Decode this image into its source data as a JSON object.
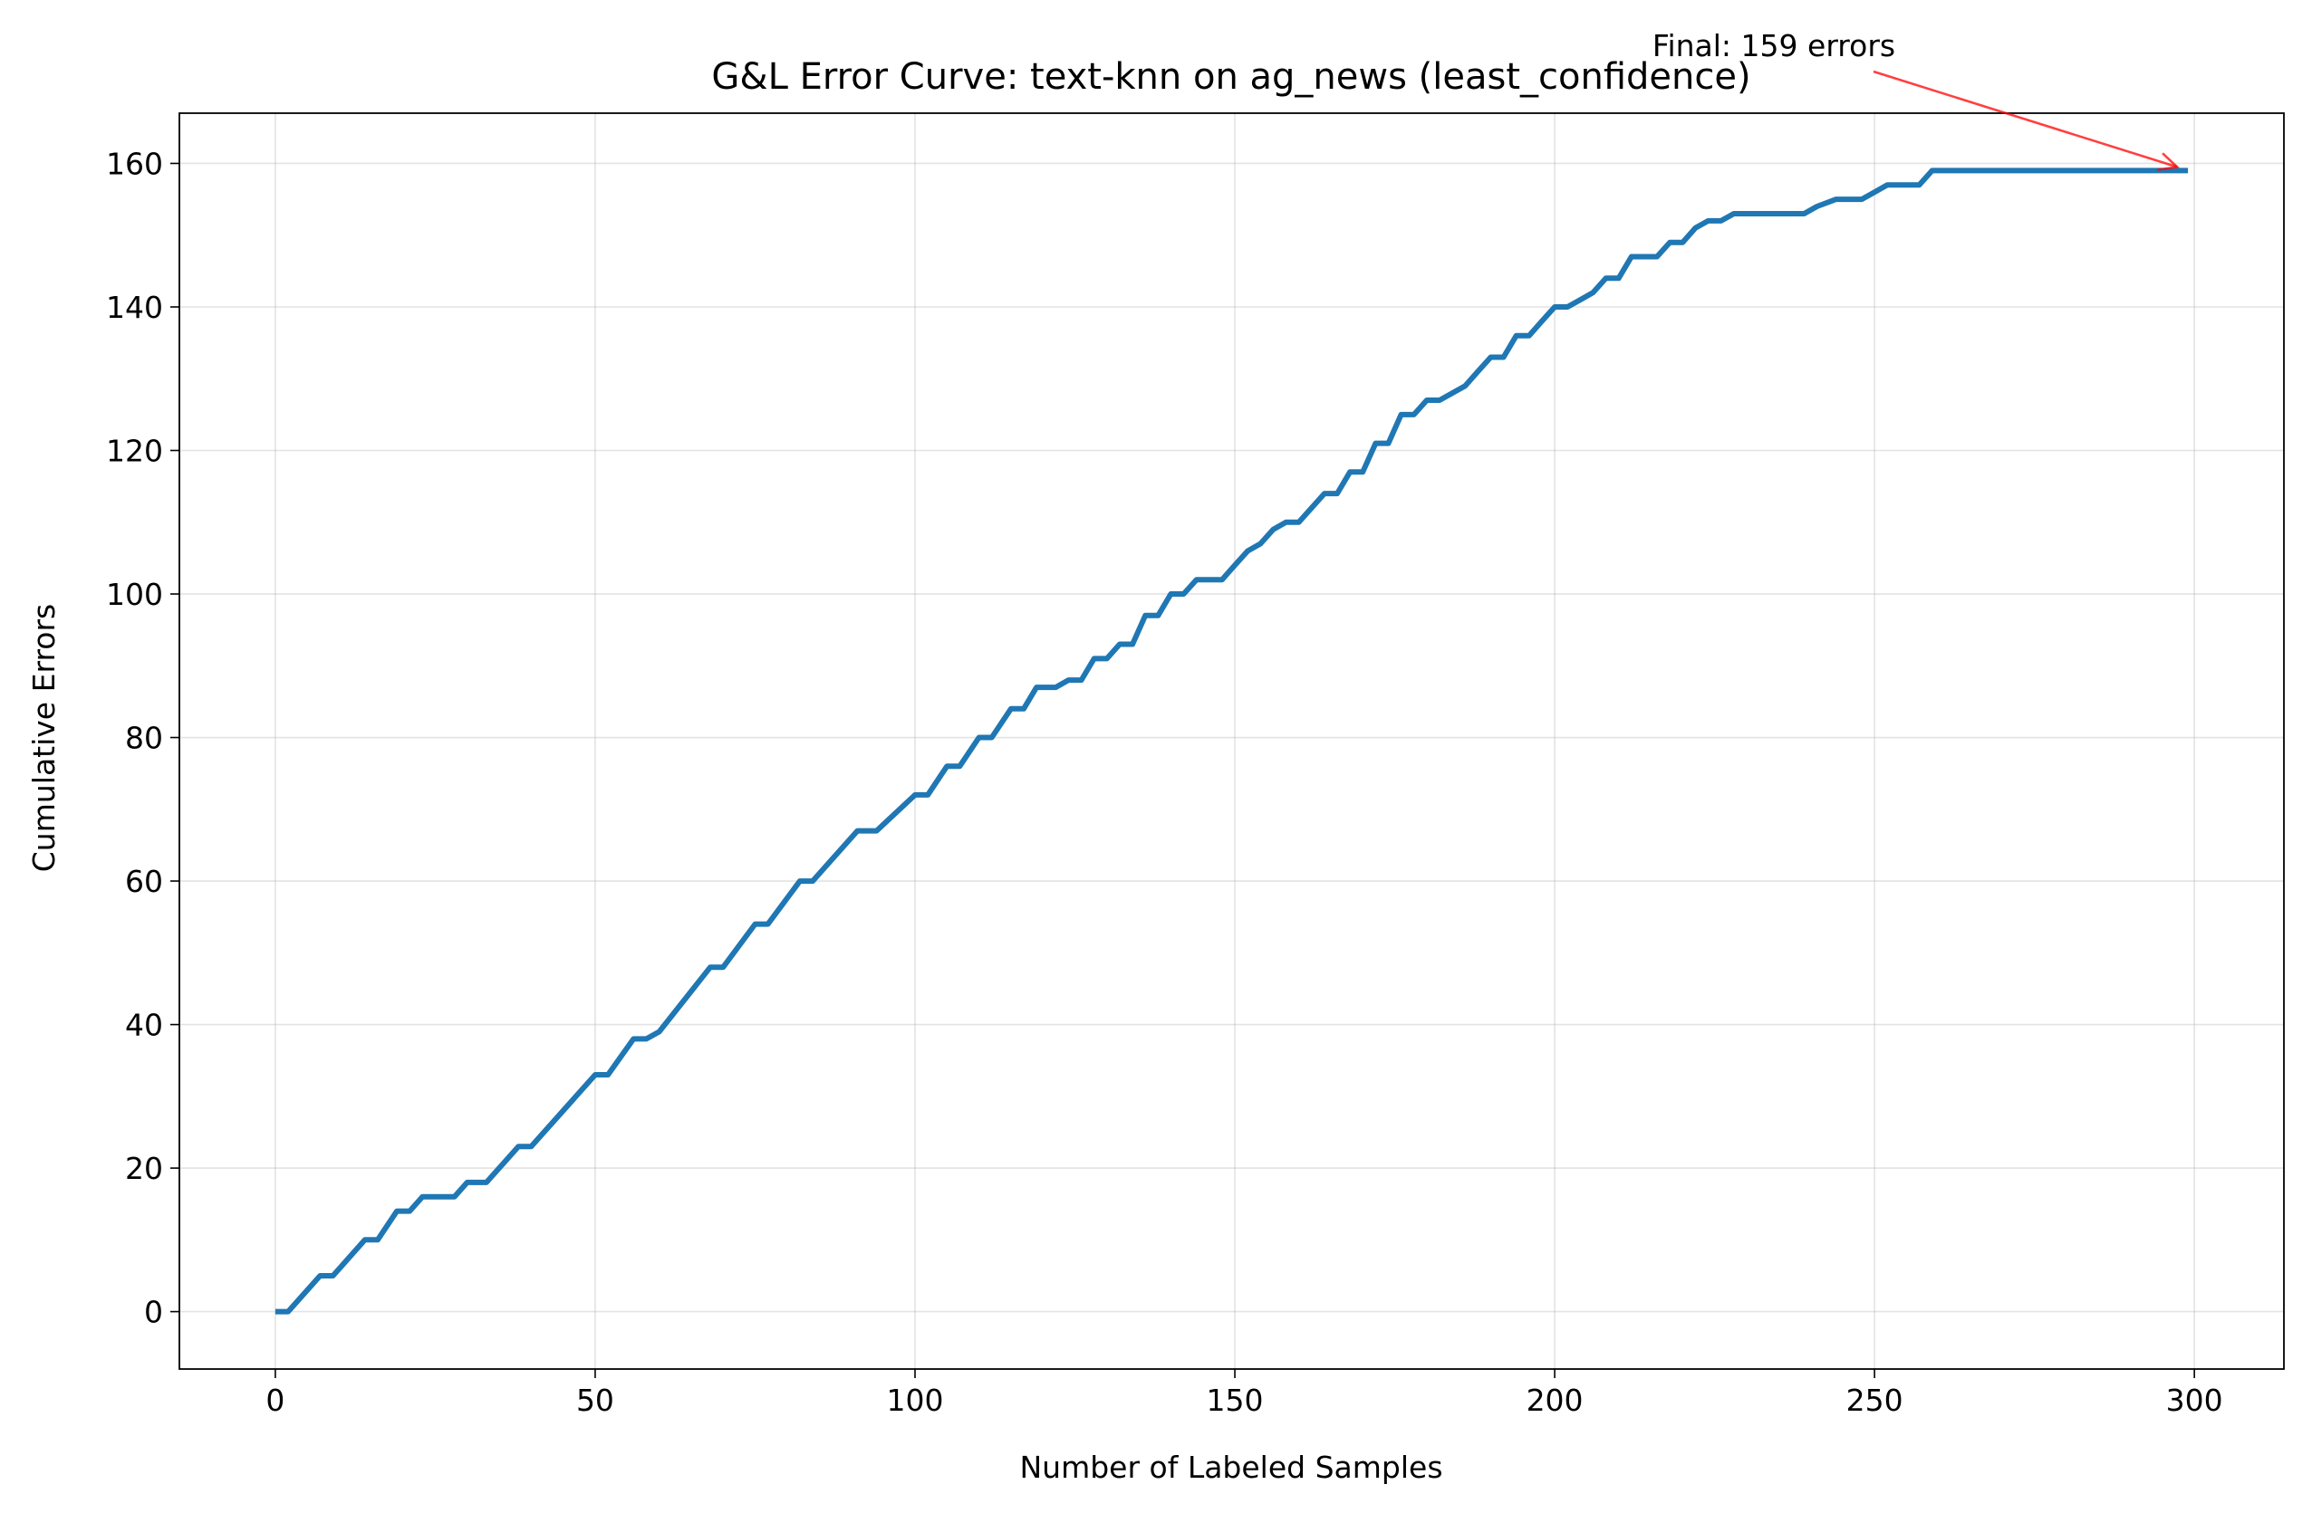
{
  "chart_data": {
    "type": "line",
    "title": "G&L Error Curve: text-knn on ag_news (least_confidence)",
    "xlabel": "Number of Labeled Samples",
    "ylabel": "Cumulative Errors",
    "xlim": [
      -15,
      314
    ],
    "ylim": [
      -8,
      167
    ],
    "xticks": [
      0,
      50,
      100,
      150,
      200,
      250,
      300
    ],
    "yticks": [
      0,
      20,
      40,
      60,
      80,
      100,
      120,
      140,
      160
    ],
    "xtick_labels": [
      "0",
      "50",
      "100",
      "150",
      "200",
      "250",
      "300"
    ],
    "ytick_labels": [
      "0",
      "20",
      "40",
      "60",
      "80",
      "100",
      "120",
      "140",
      "160"
    ],
    "grid": true,
    "series": [
      {
        "color": "#1f77b4",
        "x": [
          0,
          2,
          7,
          9,
          14,
          16,
          19,
          21,
          23,
          28,
          30,
          33,
          38,
          40,
          50,
          52,
          56,
          58,
          60,
          68,
          70,
          75,
          77,
          82,
          84,
          86,
          91,
          94,
          100,
          102,
          105,
          107,
          110,
          112,
          115,
          117,
          119,
          122,
          124,
          126,
          128,
          130,
          132,
          134,
          136,
          138,
          140,
          142,
          144,
          146,
          148,
          150,
          152,
          154,
          156,
          158,
          160,
          162,
          164,
          166,
          168,
          170,
          172,
          174,
          176,
          178,
          180,
          182,
          184,
          186,
          188,
          190,
          192,
          194,
          196,
          198,
          200,
          202,
          204,
          206,
          208,
          210,
          212,
          214,
          216,
          218,
          220,
          222,
          224,
          226,
          228,
          230,
          232,
          239,
          241,
          244,
          246,
          248,
          250,
          252,
          254,
          256,
          257,
          259,
          299
        ],
        "y": [
          0,
          0,
          5,
          5,
          10,
          10,
          14,
          14,
          16,
          16,
          18,
          18,
          23,
          23,
          33,
          33,
          38,
          38,
          39,
          48,
          48,
          54,
          54,
          60,
          60,
          62,
          67,
          67,
          72,
          72,
          76,
          76,
          80,
          80,
          84,
          84,
          87,
          87,
          88,
          88,
          91,
          91,
          93,
          93,
          97,
          97,
          100,
          100,
          102,
          102,
          102,
          104,
          106,
          107,
          109,
          110,
          110,
          112,
          114,
          114,
          117,
          117,
          121,
          121,
          125,
          125,
          127,
          127,
          128,
          129,
          131,
          133,
          133,
          136,
          136,
          138,
          140,
          140,
          141,
          142,
          144,
          144,
          147,
          147,
          147,
          149,
          149,
          151,
          152,
          152,
          153,
          153,
          153,
          153,
          154,
          155,
          155,
          155,
          156,
          157,
          157,
          157,
          157,
          159,
          159
        ]
      }
    ],
    "annotations": [
      {
        "text": "Final: 159 errors",
        "target_x": 299,
        "target_y": 159,
        "arrow_color": "#ff0000"
      }
    ]
  }
}
